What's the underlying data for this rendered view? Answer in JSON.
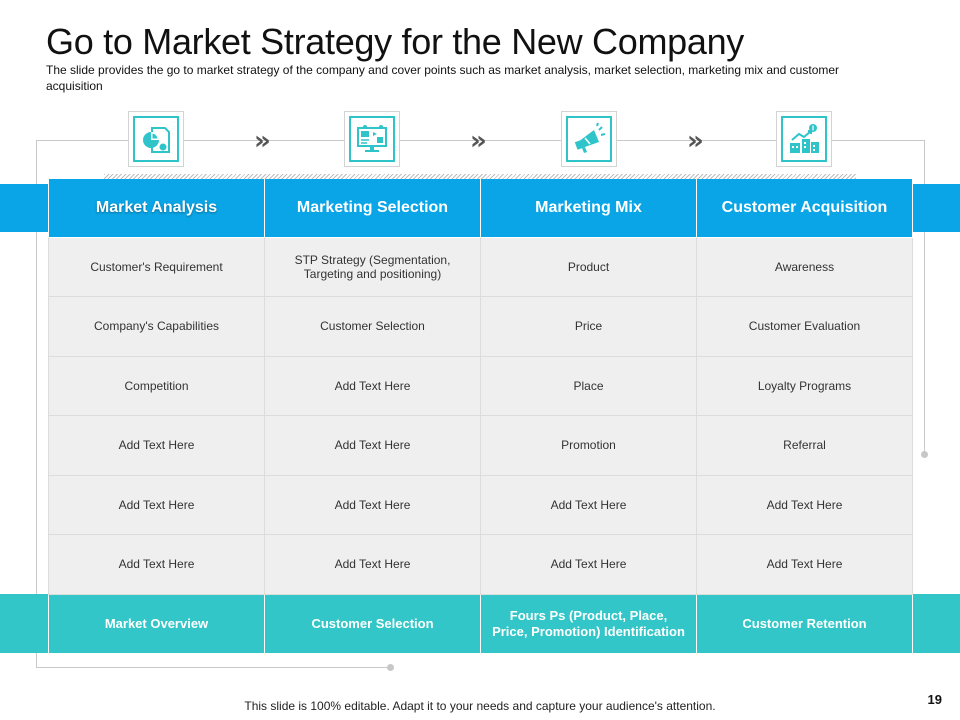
{
  "slide": {
    "title": "Go to Market Strategy for the New Company",
    "subtitle": "The slide provides the go to market strategy of the company and cover points such as market analysis, market selection, marketing mix and customer acquisition",
    "footer": "This slide is 100% editable. Adapt it to your needs and capture your audience's attention.",
    "page_number": "19"
  },
  "icons": [
    {
      "name": "analysis-chart-icon"
    },
    {
      "name": "marketing-screen-icon"
    },
    {
      "name": "megaphone-icon"
    },
    {
      "name": "acquisition-buildings-icon"
    }
  ],
  "colors": {
    "header_blue": "#0aa5e6",
    "summary_teal": "#33c6c8",
    "icon_teal": "#2ec4ca",
    "cell_gray": "#efefef"
  },
  "table": {
    "headers": [
      "Market Analysis",
      "Marketing Selection",
      "Marketing Mix",
      "Customer Acquisition"
    ],
    "rows": [
      [
        "Customer's Requirement",
        "STP Strategy (Segmentation, Targeting and positioning)",
        "Product",
        "Awareness"
      ],
      [
        "Company's Capabilities",
        "Customer Selection",
        "Price",
        "Customer Evaluation"
      ],
      [
        "Competition",
        "Add Text Here",
        "Place",
        "Loyalty Programs"
      ],
      [
        "Add Text Here",
        "Add Text Here",
        "Promotion",
        "Referral"
      ],
      [
        "Add Text Here",
        "Add Text Here",
        "Add Text Here",
        "Add Text Here"
      ],
      [
        "Add Text Here",
        "Add Text Here",
        "Add Text Here",
        "Add Text Here"
      ]
    ],
    "summary": [
      "Market Overview",
      "Customer  Selection",
      "Fours Ps (Product,  Place, Price, Promotion) Identification",
      "Customer  Retention"
    ]
  }
}
